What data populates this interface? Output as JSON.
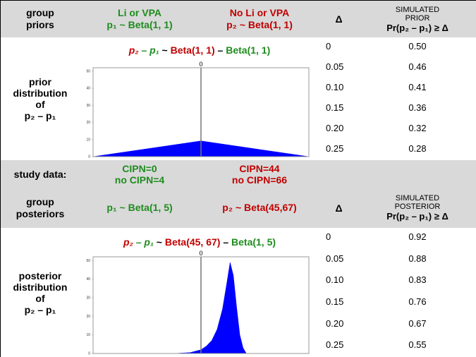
{
  "priors": {
    "label": [
      "group",
      "priors"
    ],
    "groups": [
      {
        "name": "Li or VPA",
        "model": "p₁ ~ Beta(1, 1)",
        "color": "#1e8c1e"
      },
      {
        "name": "No Li or VPA",
        "model": "p₂ ~ Beta(1, 1)",
        "color": "#c00000"
      }
    ],
    "delta_header": "Δ",
    "sim_header": [
      "SIMULATED",
      "PRIOR",
      "Pr(p₂ – p₁) ≥ Δ"
    ],
    "dist_label": [
      "prior",
      "distribution",
      "of",
      "p₂ – p₁"
    ],
    "chart": {
      "type": "area",
      "title_parts": [
        {
          "text": "p₂",
          "color": "#c00000",
          "italic": true
        },
        {
          "text": " – p₁",
          "color": "#1e8c1e",
          "italic": true
        },
        {
          "text": " ~ ",
          "color": "#000000"
        },
        {
          "text": "Beta(1, 1)",
          "color": "#c00000"
        },
        {
          "text": " – ",
          "color": "#000000"
        },
        {
          "text": "Beta(1, 1)",
          "color": "#1e8c1e"
        }
      ],
      "x": [
        -1,
        -0.5,
        0,
        0.5,
        1
      ],
      "values": [
        0,
        4.6,
        9.2,
        4.6,
        0
      ],
      "color": "#0000ff",
      "xlim": [
        -1,
        1
      ],
      "ylim": [
        0,
        52
      ],
      "yticks": [
        0,
        10,
        20,
        30,
        40,
        50
      ],
      "xticks": [
        0
      ]
    },
    "rows": [
      {
        "delta": "0",
        "prob": "0.50"
      },
      {
        "delta": "0.05",
        "prob": "0.46"
      },
      {
        "delta": "0.10",
        "prob": "0.41"
      },
      {
        "delta": "0.15",
        "prob": "0.36"
      },
      {
        "delta": "0.20",
        "prob": "0.32"
      },
      {
        "delta": "0.25",
        "prob": "0.28"
      }
    ]
  },
  "study_data": {
    "label": "study data:",
    "groups": [
      {
        "lines": [
          "CIPN=0",
          "no CIPN=4"
        ],
        "color": "#1e8c1e"
      },
      {
        "lines": [
          "CIPN=44",
          "no CIPN=66"
        ],
        "color": "#c00000"
      }
    ]
  },
  "posteriors": {
    "label": [
      "group",
      "posteriors"
    ],
    "groups": [
      {
        "model": "p₁ ~ Beta(1, 5)",
        "color": "#1e8c1e"
      },
      {
        "model": "p₂ ~ Beta(45,67)",
        "color": "#c00000"
      }
    ],
    "delta_header": "Δ",
    "sim_header": [
      "SIMULATED",
      "POSTERIOR",
      "Pr(p₂ – p₁) ≥ Δ"
    ],
    "dist_label": [
      "posterior",
      "distribution",
      "of",
      "p₂ – p₁"
    ],
    "chart": {
      "type": "area",
      "title_parts": [
        {
          "text": "p₂",
          "color": "#c00000",
          "italic": true
        },
        {
          "text": " – p₁",
          "color": "#1e8c1e",
          "italic": true
        },
        {
          "text": " ~ ",
          "color": "#000000"
        },
        {
          "text": "Beta(45, 67)",
          "color": "#c00000"
        },
        {
          "text": " – ",
          "color": "#000000"
        },
        {
          "text": "Beta(1, 5)",
          "color": "#1e8c1e"
        }
      ],
      "x": [
        -0.25,
        -0.1,
        0,
        0.05,
        0.1,
        0.15,
        0.2,
        0.24,
        0.27,
        0.3,
        0.33,
        0.36,
        0.39,
        0.42
      ],
      "values": [
        0,
        0.5,
        2,
        4,
        7,
        13,
        24,
        38,
        49,
        42,
        25,
        10,
        3,
        0
      ],
      "color": "#0000ff",
      "xlim": [
        -1,
        1
      ],
      "ylim": [
        0,
        52
      ],
      "yticks": [
        0,
        10,
        20,
        30,
        40,
        50
      ],
      "xticks": [
        0
      ]
    },
    "rows": [
      {
        "delta": "0",
        "prob": "0.92"
      },
      {
        "delta": "0.05",
        "prob": "0.88"
      },
      {
        "delta": "0.10",
        "prob": "0.83"
      },
      {
        "delta": "0.15",
        "prob": "0.76"
      },
      {
        "delta": "0.20",
        "prob": "0.67"
      },
      {
        "delta": "0.25",
        "prob": "0.55"
      }
    ]
  }
}
